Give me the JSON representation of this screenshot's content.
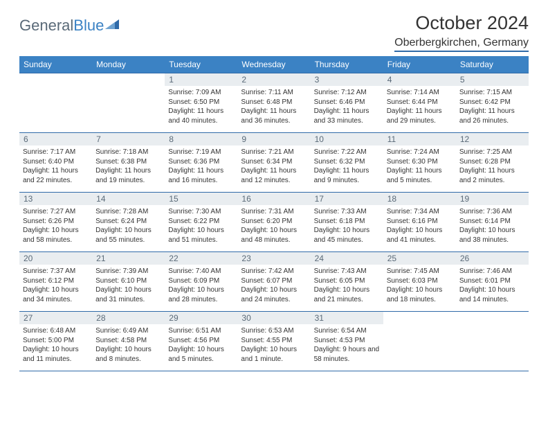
{
  "logo": {
    "text_a": "General",
    "text_b": "Blue",
    "color_a": "#5a6a78",
    "color_b": "#3b82c4"
  },
  "header": {
    "month": "October 2024",
    "location": "Oberbergkirchen, Germany"
  },
  "colors": {
    "header_bg": "#3b82c4",
    "header_fg": "#ffffff",
    "rule": "#2f6aa8",
    "daynum_bg": "#e9edf0",
    "daynum_fg": "#5a6a78",
    "text": "#333333",
    "page_bg": "#ffffff"
  },
  "fonts": {
    "body": "Arial",
    "title_size_pt": 20,
    "location_size_pt": 12,
    "cell_size_pt": 7.5,
    "header_size_pt": 9
  },
  "weekdays": [
    "Sunday",
    "Monday",
    "Tuesday",
    "Wednesday",
    "Thursday",
    "Friday",
    "Saturday"
  ],
  "weeks": [
    [
      {
        "n": "",
        "lines": []
      },
      {
        "n": "",
        "lines": []
      },
      {
        "n": "1",
        "lines": [
          "Sunrise: 7:09 AM",
          "Sunset: 6:50 PM",
          "Daylight: 11 hours and 40 minutes."
        ]
      },
      {
        "n": "2",
        "lines": [
          "Sunrise: 7:11 AM",
          "Sunset: 6:48 PM",
          "Daylight: 11 hours and 36 minutes."
        ]
      },
      {
        "n": "3",
        "lines": [
          "Sunrise: 7:12 AM",
          "Sunset: 6:46 PM",
          "Daylight: 11 hours and 33 minutes."
        ]
      },
      {
        "n": "4",
        "lines": [
          "Sunrise: 7:14 AM",
          "Sunset: 6:44 PM",
          "Daylight: 11 hours and 29 minutes."
        ]
      },
      {
        "n": "5",
        "lines": [
          "Sunrise: 7:15 AM",
          "Sunset: 6:42 PM",
          "Daylight: 11 hours and 26 minutes."
        ]
      }
    ],
    [
      {
        "n": "6",
        "lines": [
          "Sunrise: 7:17 AM",
          "Sunset: 6:40 PM",
          "Daylight: 11 hours and 22 minutes."
        ]
      },
      {
        "n": "7",
        "lines": [
          "Sunrise: 7:18 AM",
          "Sunset: 6:38 PM",
          "Daylight: 11 hours and 19 minutes."
        ]
      },
      {
        "n": "8",
        "lines": [
          "Sunrise: 7:19 AM",
          "Sunset: 6:36 PM",
          "Daylight: 11 hours and 16 minutes."
        ]
      },
      {
        "n": "9",
        "lines": [
          "Sunrise: 7:21 AM",
          "Sunset: 6:34 PM",
          "Daylight: 11 hours and 12 minutes."
        ]
      },
      {
        "n": "10",
        "lines": [
          "Sunrise: 7:22 AM",
          "Sunset: 6:32 PM",
          "Daylight: 11 hours and 9 minutes."
        ]
      },
      {
        "n": "11",
        "lines": [
          "Sunrise: 7:24 AM",
          "Sunset: 6:30 PM",
          "Daylight: 11 hours and 5 minutes."
        ]
      },
      {
        "n": "12",
        "lines": [
          "Sunrise: 7:25 AM",
          "Sunset: 6:28 PM",
          "Daylight: 11 hours and 2 minutes."
        ]
      }
    ],
    [
      {
        "n": "13",
        "lines": [
          "Sunrise: 7:27 AM",
          "Sunset: 6:26 PM",
          "Daylight: 10 hours and 58 minutes."
        ]
      },
      {
        "n": "14",
        "lines": [
          "Sunrise: 7:28 AM",
          "Sunset: 6:24 PM",
          "Daylight: 10 hours and 55 minutes."
        ]
      },
      {
        "n": "15",
        "lines": [
          "Sunrise: 7:30 AM",
          "Sunset: 6:22 PM",
          "Daylight: 10 hours and 51 minutes."
        ]
      },
      {
        "n": "16",
        "lines": [
          "Sunrise: 7:31 AM",
          "Sunset: 6:20 PM",
          "Daylight: 10 hours and 48 minutes."
        ]
      },
      {
        "n": "17",
        "lines": [
          "Sunrise: 7:33 AM",
          "Sunset: 6:18 PM",
          "Daylight: 10 hours and 45 minutes."
        ]
      },
      {
        "n": "18",
        "lines": [
          "Sunrise: 7:34 AM",
          "Sunset: 6:16 PM",
          "Daylight: 10 hours and 41 minutes."
        ]
      },
      {
        "n": "19",
        "lines": [
          "Sunrise: 7:36 AM",
          "Sunset: 6:14 PM",
          "Daylight: 10 hours and 38 minutes."
        ]
      }
    ],
    [
      {
        "n": "20",
        "lines": [
          "Sunrise: 7:37 AM",
          "Sunset: 6:12 PM",
          "Daylight: 10 hours and 34 minutes."
        ]
      },
      {
        "n": "21",
        "lines": [
          "Sunrise: 7:39 AM",
          "Sunset: 6:10 PM",
          "Daylight: 10 hours and 31 minutes."
        ]
      },
      {
        "n": "22",
        "lines": [
          "Sunrise: 7:40 AM",
          "Sunset: 6:09 PM",
          "Daylight: 10 hours and 28 minutes."
        ]
      },
      {
        "n": "23",
        "lines": [
          "Sunrise: 7:42 AM",
          "Sunset: 6:07 PM",
          "Daylight: 10 hours and 24 minutes."
        ]
      },
      {
        "n": "24",
        "lines": [
          "Sunrise: 7:43 AM",
          "Sunset: 6:05 PM",
          "Daylight: 10 hours and 21 minutes."
        ]
      },
      {
        "n": "25",
        "lines": [
          "Sunrise: 7:45 AM",
          "Sunset: 6:03 PM",
          "Daylight: 10 hours and 18 minutes."
        ]
      },
      {
        "n": "26",
        "lines": [
          "Sunrise: 7:46 AM",
          "Sunset: 6:01 PM",
          "Daylight: 10 hours and 14 minutes."
        ]
      }
    ],
    [
      {
        "n": "27",
        "lines": [
          "Sunrise: 6:48 AM",
          "Sunset: 5:00 PM",
          "Daylight: 10 hours and 11 minutes."
        ]
      },
      {
        "n": "28",
        "lines": [
          "Sunrise: 6:49 AM",
          "Sunset: 4:58 PM",
          "Daylight: 10 hours and 8 minutes."
        ]
      },
      {
        "n": "29",
        "lines": [
          "Sunrise: 6:51 AM",
          "Sunset: 4:56 PM",
          "Daylight: 10 hours and 5 minutes."
        ]
      },
      {
        "n": "30",
        "lines": [
          "Sunrise: 6:53 AM",
          "Sunset: 4:55 PM",
          "Daylight: 10 hours and 1 minute."
        ]
      },
      {
        "n": "31",
        "lines": [
          "Sunrise: 6:54 AM",
          "Sunset: 4:53 PM",
          "Daylight: 9 hours and 58 minutes."
        ]
      },
      {
        "n": "",
        "lines": []
      },
      {
        "n": "",
        "lines": []
      }
    ]
  ]
}
